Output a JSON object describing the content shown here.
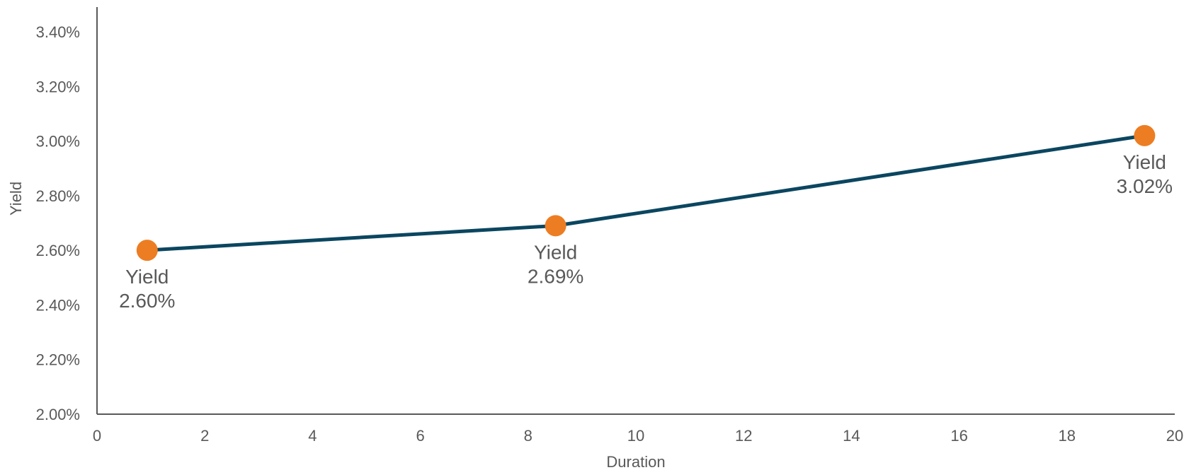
{
  "chart_data": {
    "type": "line",
    "title": "",
    "xlabel": "Duration",
    "ylabel": "Yield",
    "xlim": [
      0,
      20
    ],
    "ylim": [
      2.0,
      3.5
    ],
    "x_ticks": [
      "0",
      "2",
      "4",
      "6",
      "8",
      "10",
      "12",
      "14",
      "16",
      "18",
      "20"
    ],
    "y_ticks": [
      "2.00%",
      "2.20%",
      "2.40%",
      "2.60%",
      "2.80%",
      "3.00%",
      "3.20%",
      "3.40%"
    ],
    "grid": false,
    "legend": "none",
    "series": [
      {
        "points": [
          {
            "x": 0.93,
            "y": 2.6,
            "label_name": "Yield",
            "label_value": "2.60%",
            "label_position": "below"
          },
          {
            "x": 8.51,
            "y": 2.69,
            "label_name": "Yield",
            "label_value": "2.69%",
            "label_position": "below"
          },
          {
            "x": 19.44,
            "y": 3.02,
            "label_name": "Yield",
            "label_value": "3.02%",
            "label_position": "below"
          }
        ],
        "line_color": "#0b4660",
        "marker_color": "#ed7d22"
      }
    ],
    "axis_color": "#595959"
  }
}
